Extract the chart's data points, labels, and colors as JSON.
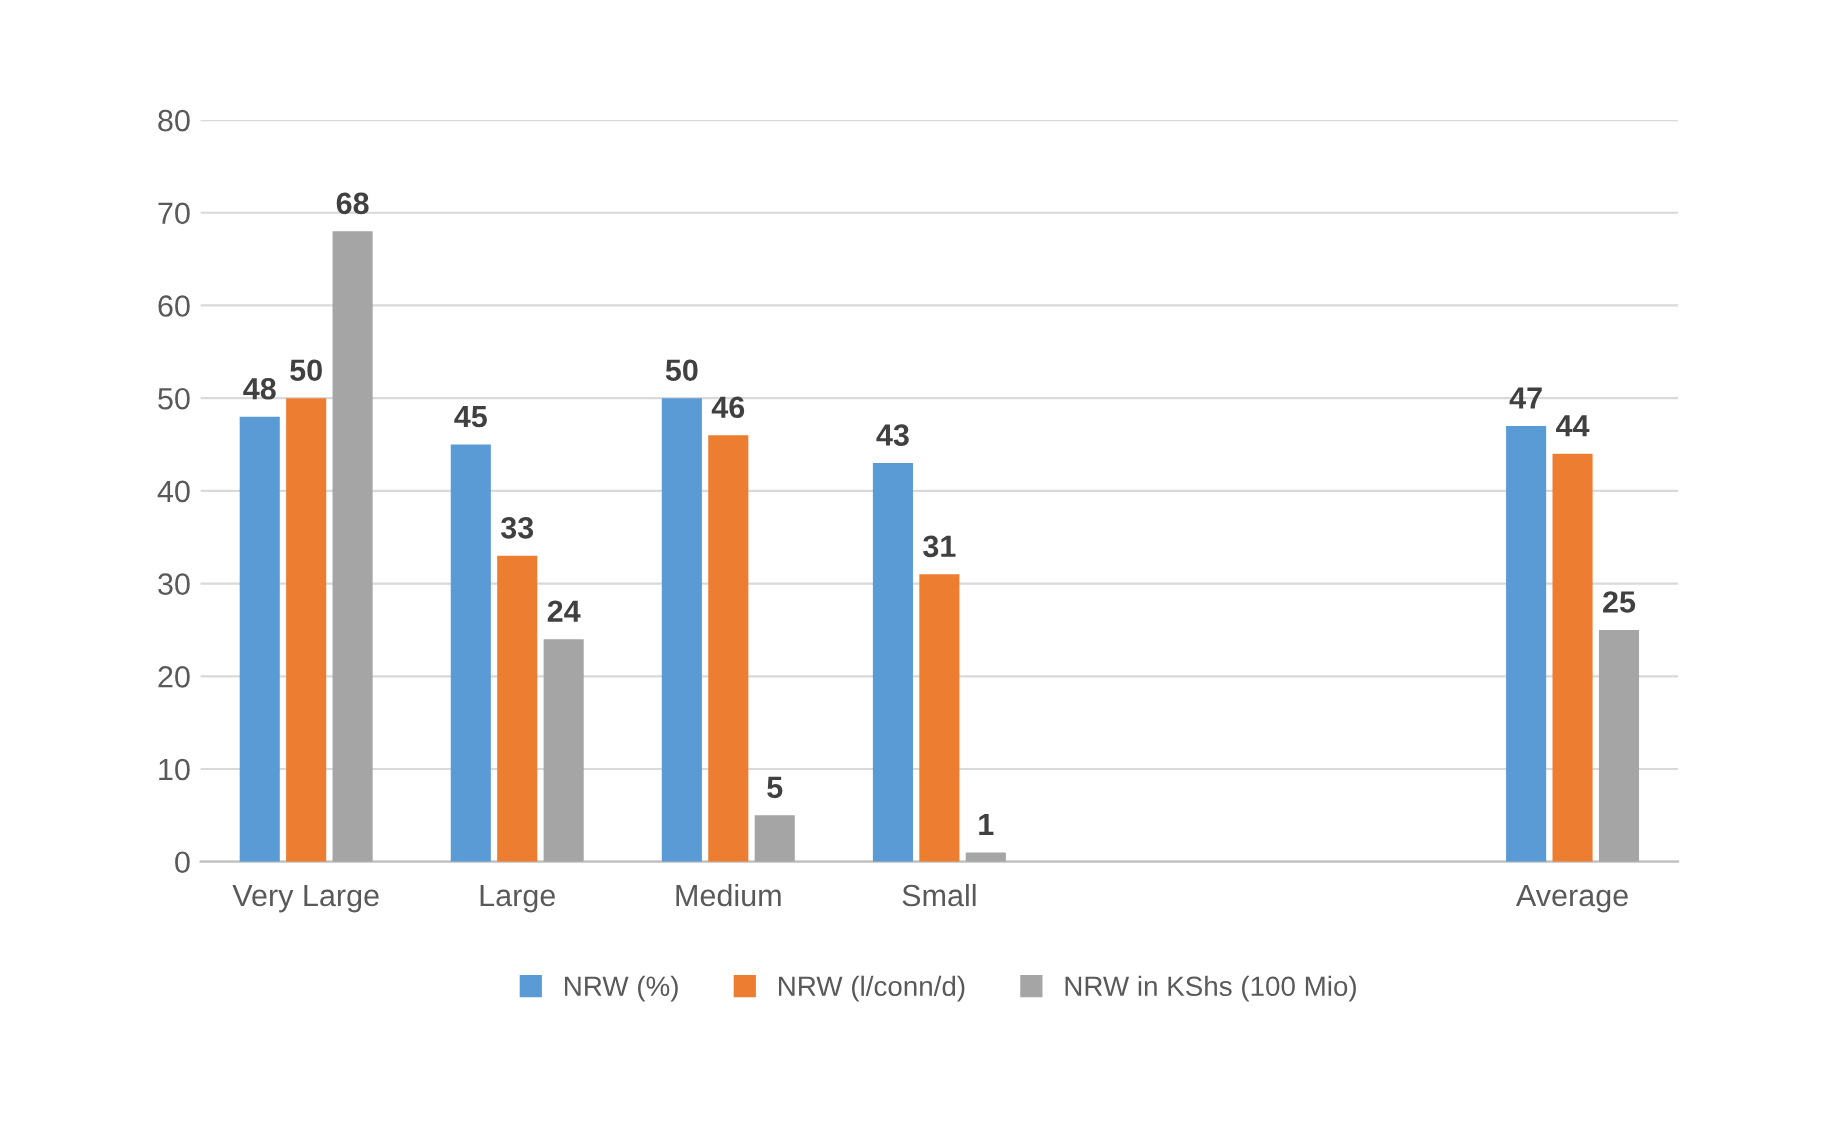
{
  "chart_data": {
    "type": "bar",
    "categories": [
      "Very Large",
      "Large",
      "Medium",
      "Small",
      null,
      null,
      "Average"
    ],
    "series": [
      {
        "name": "NRW (%)",
        "color": "#5b9bd5",
        "values": [
          48,
          45,
          50,
          43,
          null,
          null,
          47
        ]
      },
      {
        "name": "NRW (l/conn/d)",
        "color": "#ed7d31",
        "values": [
          50,
          33,
          46,
          31,
          null,
          null,
          44
        ]
      },
      {
        "name": "NRW in KShs (100 Mio)",
        "color": "#a5a5a5",
        "values": [
          68,
          24,
          5,
          1,
          null,
          null,
          25
        ]
      }
    ],
    "ylim": [
      0,
      80
    ],
    "yticks": [
      0,
      10,
      20,
      30,
      40,
      50,
      60,
      70,
      80
    ],
    "grid": "y",
    "legend": "bottom",
    "data_labels": true
  }
}
